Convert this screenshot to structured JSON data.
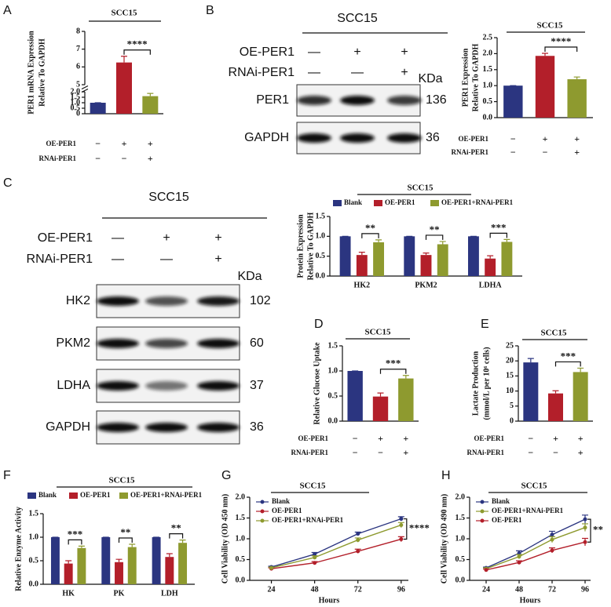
{
  "chart_data": [
    {
      "panel": "A",
      "type": "bar",
      "title": "SCC15",
      "ylabel": [
        "PER1 mRNA Expression",
        "Relative To GAPDH"
      ],
      "y_segments": [
        {
          "ylim": [
            0,
            2
          ],
          "yticks": [
            0,
            0.5,
            {
              "value": 1,
              "label": "1.0"
            },
            1.5,
            {
              "value": 2,
              "label": "2.0"
            }
          ]
        },
        {
          "ylim": [
            5,
            8
          ],
          "yticks": [
            5,
            6,
            7,
            8
          ]
        }
      ],
      "values": [
        1,
        6.25,
        1.6
      ],
      "errors": [
        0,
        0.35,
        0.25
      ],
      "colors": [
        "#2b3580",
        "#b31f2a",
        "#8e9a2f"
      ],
      "conditions": [
        {
          "label": "OE-PER1",
          "signs": [
            "−",
            "+",
            "+"
          ]
        },
        {
          "label": "RNAi-PER1",
          "signs": [
            "−",
            "−",
            "+"
          ]
        }
      ],
      "significance": "****"
    },
    {
      "type": "bar",
      "title": "SCC15",
      "ylabel": [
        "PER1 Expression",
        "Relative To GAPDH"
      ],
      "ylim": [
        0,
        2.5
      ],
      "yticks": [
        {
          "value": 0,
          "label": "0.0"
        },
        0.5,
        {
          "value": 1,
          "label": "1.0"
        },
        1.5,
        {
          "value": 2,
          "label": "2.0"
        },
        2.5
      ],
      "values": [
        1,
        1.93,
        1.2
      ],
      "errors": [
        0,
        0.08,
        0.07
      ],
      "colors": [
        "#2b3580",
        "#b31f2a",
        "#8e9a2f"
      ],
      "conditions": [
        {
          "label": "OE-PER1",
          "signs": [
            "−",
            "+",
            "+"
          ]
        },
        {
          "label": "RNAi-PER1",
          "signs": [
            "−",
            "−",
            "+"
          ]
        }
      ],
      "significance": "****"
    },
    {
      "type": "grouped_bar",
      "title": "SCC15",
      "ylabel": [
        "Protein Expression",
        "Relative To GAPDH"
      ],
      "ylim": [
        0,
        1.5
      ],
      "yticks": [
        {
          "value": 0,
          "label": "0.0"
        },
        0.5,
        {
          "value": 1,
          "label": "1.0"
        },
        1.5
      ],
      "categories": [
        "HK2",
        "PKM2",
        "LDHA"
      ],
      "series": [
        {
          "name": "Blank",
          "color": "#2b3580",
          "values": [
            1,
            1,
            1
          ],
          "errors": [
            0,
            0,
            0
          ]
        },
        {
          "name": "OE-PER1",
          "color": "#b31f2a",
          "values": [
            0.53,
            0.53,
            0.44
          ],
          "errors": [
            0.07,
            0.05,
            0.07
          ]
        },
        {
          "name": "OE-PER1+RNAi-PER1",
          "color": "#8e9a2f",
          "values": [
            0.85,
            0.8,
            0.86
          ],
          "errors": [
            0.06,
            0.07,
            0.06
          ]
        }
      ],
      "significance": [
        "**",
        "**",
        "***"
      ]
    },
    {
      "panel": "D",
      "type": "bar",
      "title": "SCC15",
      "ylabel": [
        "Relative Glucose Uptake"
      ],
      "ylim": [
        0,
        1.5
      ],
      "yticks": [
        {
          "value": 0,
          "label": "0.0"
        },
        0.5,
        {
          "value": 1,
          "label": "1.0"
        },
        1.5
      ],
      "values": [
        1,
        0.49,
        0.85
      ],
      "errors": [
        0,
        0.07,
        0.06
      ],
      "colors": [
        "#2b3580",
        "#b31f2a",
        "#8e9a2f"
      ],
      "conditions": [
        {
          "label": "OE-PER1",
          "signs": [
            "−",
            "+",
            "+"
          ]
        },
        {
          "label": "RNAi-PER1",
          "signs": [
            "−",
            "−",
            "+"
          ]
        }
      ],
      "significance": "***"
    },
    {
      "panel": "E",
      "type": "bar",
      "title": "SCC15",
      "ylabel": [
        "Lactate Production",
        "(mmol/L per 10⁶ cells)"
      ],
      "ylim": [
        0,
        25
      ],
      "yticks": [
        0,
        5,
        10,
        15,
        20,
        25
      ],
      "values": [
        19.5,
        9.2,
        16.3
      ],
      "errors": [
        1.3,
        0.9,
        1.3
      ],
      "colors": [
        "#2b3580",
        "#b31f2a",
        "#8e9a2f"
      ],
      "conditions": [
        {
          "label": "OE-PER1",
          "signs": [
            "−",
            "+",
            "+"
          ]
        },
        {
          "label": "RNAi-PER1",
          "signs": [
            "−",
            "−",
            "+"
          ]
        }
      ],
      "significance": "***"
    },
    {
      "panel": "F",
      "type": "grouped_bar",
      "title": "SCC15",
      "ylabel": [
        "Relative Enzyme Activity"
      ],
      "ylim": [
        0,
        1.5
      ],
      "yticks": [
        {
          "value": 0,
          "label": "0.0"
        },
        0.5,
        {
          "value": 1,
          "label": "1.0"
        },
        1.5
      ],
      "categories": [
        "HK",
        "PK",
        "LDH"
      ],
      "series": [
        {
          "name": "Blank",
          "color": "#2b3580",
          "values": [
            1,
            1,
            1
          ],
          "errors": [
            0,
            0,
            0
          ]
        },
        {
          "name": "OE-PER1",
          "color": "#b31f2a",
          "values": [
            0.44,
            0.47,
            0.58
          ],
          "errors": [
            0.06,
            0.06,
            0.07
          ]
        },
        {
          "name": "OE-PER1+RNAi-PER1",
          "color": "#8e9a2f",
          "values": [
            0.77,
            0.79,
            0.88
          ],
          "errors": [
            0.04,
            0.06,
            0.06
          ]
        }
      ],
      "significance": [
        "***",
        "**",
        "**"
      ]
    },
    {
      "panel": "G",
      "type": "line",
      "title": "SCC15",
      "ylabel": [
        "Cell Viability (OD 450 nm)"
      ],
      "xlabel": "Hours",
      "x": [
        24,
        48,
        72,
        96
      ],
      "xlim": [
        12,
        100
      ],
      "xticks": [
        24,
        48,
        72,
        96
      ],
      "ylim": [
        0,
        2
      ],
      "yticks": [
        {
          "value": 0,
          "label": "0.0"
        },
        0.5,
        {
          "value": 1,
          "label": "1.0"
        },
        1.5,
        {
          "value": 2,
          "label": "2.0"
        }
      ],
      "series": [
        {
          "name": "Blank",
          "color": "#2b3580",
          "values": [
            0.32,
            0.63,
            1.12,
            1.48
          ],
          "errors": [
            0.02,
            0.04,
            0.04,
            0.05
          ]
        },
        {
          "name": "OE-PER1",
          "color": "#b31f2a",
          "values": [
            0.28,
            0.42,
            0.7,
            0.99
          ],
          "errors": [
            0.02,
            0.03,
            0.05,
            0.06
          ]
        },
        {
          "name": "OE-PER1+RNAi-PER1",
          "color": "#8e9a2f",
          "values": [
            0.3,
            0.55,
            0.97,
            1.33
          ],
          "errors": [
            0.02,
            0.04,
            0.05,
            0.06
          ]
        }
      ],
      "significance": "****"
    },
    {
      "panel": "H",
      "type": "line",
      "title": "SCC15",
      "ylabel": [
        "Cell Viability (OD 490 nm)"
      ],
      "xlabel": "Hours",
      "x": [
        24,
        48,
        72,
        96
      ],
      "xlim": [
        12,
        100
      ],
      "xticks": [
        24,
        48,
        72,
        96
      ],
      "ylim": [
        0,
        2
      ],
      "yticks": [
        {
          "value": 0,
          "label": "0.0"
        },
        0.5,
        {
          "value": 1,
          "label": "1.0"
        },
        1.5,
        {
          "value": 2,
          "label": "2.0"
        }
      ],
      "series": [
        {
          "name": "Blank",
          "color": "#2b3580",
          "values": [
            0.3,
            0.65,
            1.1,
            1.47
          ],
          "errors": [
            0.02,
            0.06,
            0.08,
            0.1
          ]
        },
        {
          "name": "OE-PER1+RNAi-PER1",
          "color": "#8e9a2f",
          "values": [
            0.28,
            0.57,
            0.98,
            1.27
          ],
          "errors": [
            0.02,
            0.05,
            0.07,
            0.09
          ]
        },
        {
          "name": "OE-PER1",
          "color": "#b31f2a",
          "values": [
            0.25,
            0.43,
            0.72,
            0.92
          ],
          "errors": [
            0.02,
            0.04,
            0.06,
            0.09
          ]
        }
      ],
      "significance": "**"
    }
  ],
  "blots": [
    {
      "panel": "B",
      "title": "SCC15",
      "conditions": [
        {
          "label": "OE-PER1",
          "signs": [
            "—",
            "+",
            "+"
          ]
        },
        {
          "label": "RNAi-PER1",
          "signs": [
            "—",
            "—",
            "+"
          ]
        }
      ],
      "unit": "KDa",
      "bands": [
        {
          "label": "PER1",
          "size": 136
        },
        {
          "label": "GAPDH",
          "size": 36
        }
      ]
    },
    {
      "panel": "C",
      "title": "SCC15",
      "conditions": [
        {
          "label": "OE-PER1",
          "signs": [
            "—",
            "+",
            "+"
          ]
        },
        {
          "label": "RNAi-PER1",
          "signs": [
            "—",
            "—",
            "+"
          ]
        }
      ],
      "unit": "KDa",
      "bands": [
        {
          "label": "HK2",
          "size": 102
        },
        {
          "label": "PKM2",
          "size": 60
        },
        {
          "label": "LDHA",
          "size": 37
        },
        {
          "label": "GAPDH",
          "size": 36
        }
      ]
    }
  ]
}
